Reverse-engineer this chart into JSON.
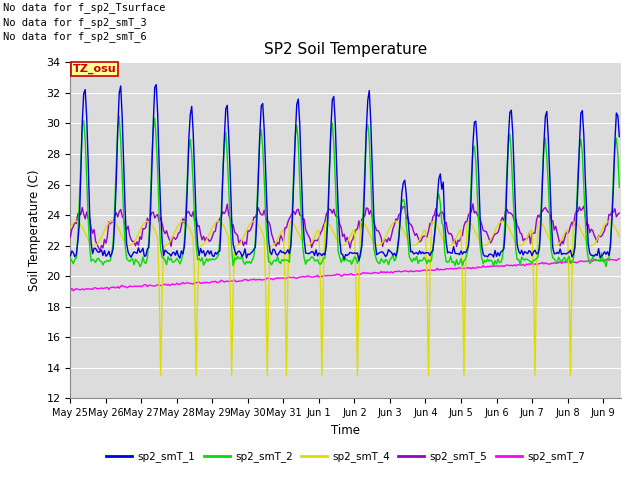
{
  "title": "SP2 Soil Temperature",
  "ylabel": "Soil Temperature (C)",
  "xlabel": "Time",
  "ylim": [
    12,
    34
  ],
  "yticks": [
    12,
    14,
    16,
    18,
    20,
    22,
    24,
    26,
    28,
    30,
    32,
    34
  ],
  "bg_color": "#dcdcdc",
  "no_data_lines": [
    "No data for f_sp2_Tsurface",
    "No data for f_sp2_smT_3",
    "No data for f_sp2_smT_6"
  ],
  "tz_label": "TZ_osu",
  "legend": [
    {
      "label": "sp2_smT_1",
      "color": "#0000dd"
    },
    {
      "label": "sp2_smT_2",
      "color": "#00dd00"
    },
    {
      "label": "sp2_smT_4",
      "color": "#dddd00"
    },
    {
      "label": "sp2_smT_5",
      "color": "#9900cc"
    },
    {
      "label": "sp2_smT_7",
      "color": "#ff00ff"
    }
  ],
  "line_width": 1.0,
  "xtick_labels": [
    "May 25",
    "May 26",
    "May 27",
    "May 28",
    "May 29",
    "May 30",
    "May 31",
    "Jun 1",
    "Jun 2",
    "Jun 3",
    "Jun 4",
    "Jun 5",
    "Jun 6",
    "Jun 7",
    "Jun 8",
    "Jun 9"
  ]
}
